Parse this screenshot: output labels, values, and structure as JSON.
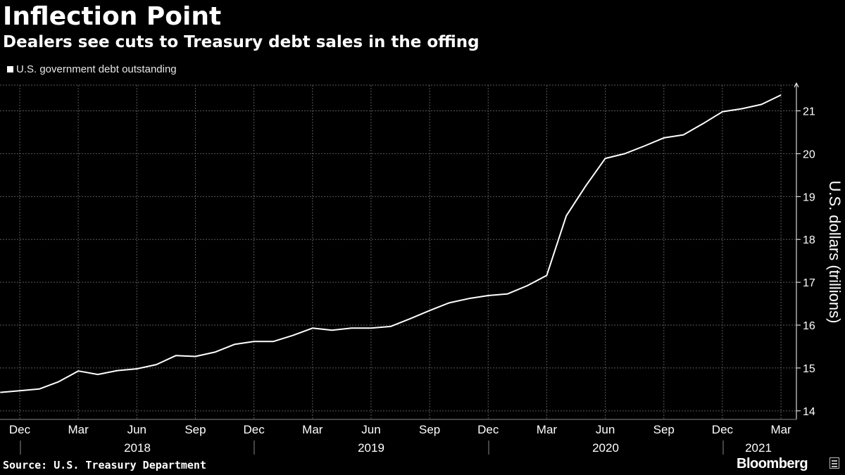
{
  "header": {
    "title": "Inflection Point",
    "subtitle": "Dealers see cuts to Treasury debt sales in the offing"
  },
  "footer": {
    "source": "Source: U.S. Treasury Department",
    "brand": "Bloomberg"
  },
  "colors": {
    "background": "#000000",
    "line": "#ffffff",
    "grid": "#5a5a5a"
  },
  "chart_data": {
    "type": "line",
    "legend": [
      "U.S. government debt outstanding"
    ],
    "legend_placement": "top-left",
    "ylabel": "U.S. dollars (trillions)",
    "y_axis_side": "right",
    "ylim": [
      13.8,
      21.6
    ],
    "yticks": [
      14,
      15,
      16,
      17,
      18,
      19,
      20,
      21
    ],
    "grid": true,
    "x_month_labels": [
      "Dec",
      "Mar",
      "Jun",
      "Sep",
      "Dec",
      "Mar",
      "Jun",
      "Sep",
      "Dec",
      "Mar",
      "Jun",
      "Sep",
      "Dec",
      "Mar"
    ],
    "x_year_labels": [
      "2018",
      "2019",
      "2020",
      "2021"
    ],
    "series": [
      {
        "name": "U.S. government debt outstanding",
        "x": [
          "2017-11",
          "2017-12",
          "2018-01",
          "2018-02",
          "2018-03",
          "2018-04",
          "2018-05",
          "2018-06",
          "2018-07",
          "2018-08",
          "2018-09",
          "2018-10",
          "2018-11",
          "2018-12",
          "2019-01",
          "2019-02",
          "2019-03",
          "2019-04",
          "2019-05",
          "2019-06",
          "2019-07",
          "2019-08",
          "2019-09",
          "2019-10",
          "2019-11",
          "2019-12",
          "2020-01",
          "2020-02",
          "2020-03",
          "2020-04",
          "2020-05",
          "2020-06",
          "2020-07",
          "2020-08",
          "2020-09",
          "2020-10",
          "2020-11",
          "2020-12",
          "2021-01",
          "2021-02",
          "2021-03"
        ],
        "values": [
          14.43,
          14.47,
          14.51,
          14.68,
          14.93,
          14.85,
          14.94,
          14.98,
          15.08,
          15.29,
          15.27,
          15.37,
          15.55,
          15.62,
          15.62,
          15.76,
          15.93,
          15.88,
          15.93,
          15.93,
          15.97,
          16.15,
          16.34,
          16.52,
          16.62,
          16.69,
          16.73,
          16.92,
          17.16,
          18.55,
          19.25,
          19.89,
          20.0,
          20.18,
          20.37,
          20.44,
          20.7,
          20.98,
          21.05,
          21.15,
          21.37
        ]
      }
    ]
  }
}
